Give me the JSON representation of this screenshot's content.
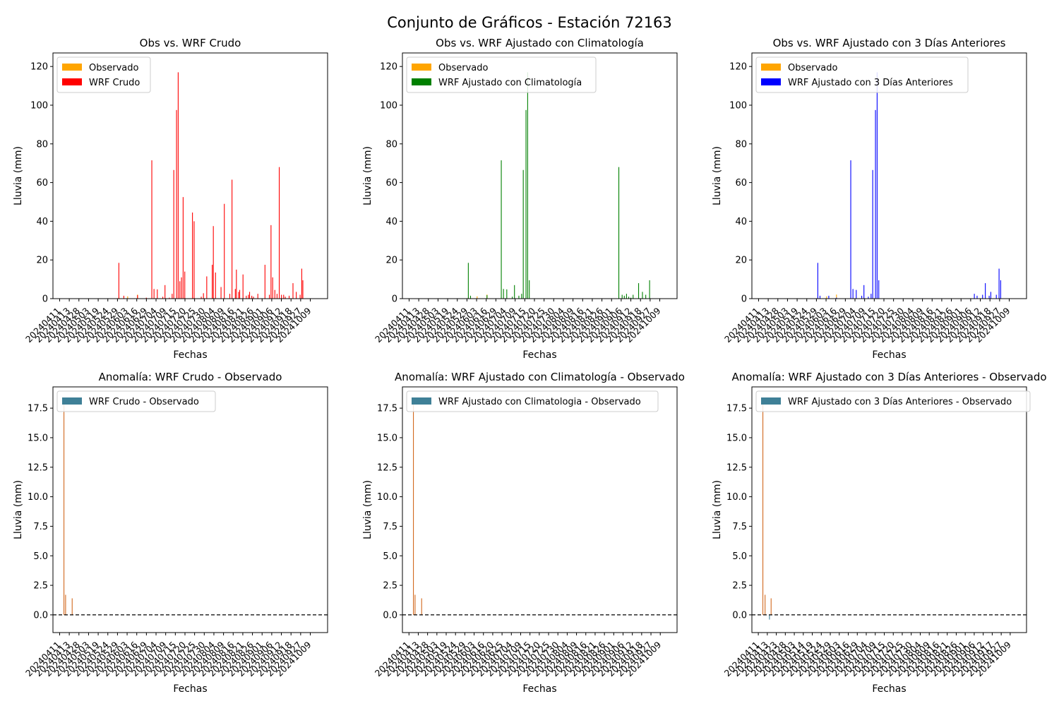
{
  "figure_title": "Conjunto de Gráficos - Estación 72163",
  "colors": {
    "observado": "#ffa500",
    "wrf_crudo": "#ff0000",
    "wrf_clim": "#008000",
    "wrf_3d": "#0000ff",
    "anom_legend": "#3f8097",
    "anom_pos": "#d2691e",
    "anom_neg": "#3f8097",
    "zero_line": "#000000"
  },
  "chart_data": [
    {
      "type": "bar",
      "title": "Obs vs. WRF Crudo",
      "xlabel": "Fechas",
      "ylabel": "Lluvia (mm)",
      "ylim": [
        0,
        127
      ],
      "yticks": [
        "0",
        "20",
        "40",
        "60",
        "80",
        "100",
        "120"
      ],
      "xticks": [
        "20240411",
        "20240413",
        "20240428",
        "20240503",
        "20240519",
        "20240524",
        "20240529",
        "20240603",
        "20240616",
        "20240629",
        "20240704",
        "20240709",
        "20240715",
        "20240720",
        "20240725",
        "20240730",
        "20240804",
        "20240809",
        "20240816",
        "20240821",
        "20240826",
        "20240901",
        "20240906",
        "20240912",
        "20240918",
        "20240927",
        "20241009"
      ],
      "legend": [
        "Observado",
        "WRF Crudo"
      ],
      "legend_position": "upper left",
      "series": [
        {
          "name": "Observado",
          "color_key": "observado",
          "values": [
            [
              12.0,
              0.5
            ],
            [
              13.6,
              1.2
            ],
            [
              15.4,
              2.1
            ]
          ]
        },
        {
          "name": "WRF Crudo",
          "color_key": "wrf_crudo",
          "values": [
            [
              12.0,
              18.5
            ],
            [
              12.9,
              1.5
            ],
            [
              15.4,
              1.8
            ],
            [
              17.0,
              0.5
            ],
            [
              18.0,
              71.5
            ],
            [
              18.4,
              5.0
            ],
            [
              19.0,
              4.8
            ],
            [
              20.0,
              1.0
            ],
            [
              20.4,
              7.0
            ],
            [
              21.2,
              0.5
            ],
            [
              21.7,
              2.5
            ],
            [
              22.0,
              66.5
            ],
            [
              22.5,
              97.5
            ],
            [
              22.8,
              117.0
            ],
            [
              23.1,
              9.0
            ],
            [
              23.4,
              11.0
            ],
            [
              23.7,
              52.5
            ],
            [
              24.0,
              14.0
            ],
            [
              25.4,
              44.5
            ],
            [
              25.7,
              40.0
            ],
            [
              27.0,
              1.0
            ],
            [
              27.4,
              2.8
            ],
            [
              28.0,
              11.5
            ],
            [
              29.0,
              17.5
            ],
            [
              29.2,
              37.5
            ],
            [
              29.6,
              13.5
            ],
            [
              30.6,
              6.0
            ],
            [
              31.2,
              49.0
            ],
            [
              32.2,
              2.5
            ],
            [
              32.6,
              61.5
            ],
            [
              33.2,
              5.0
            ],
            [
              33.4,
              15.0
            ],
            [
              33.8,
              3.5
            ],
            [
              34.0,
              4.5
            ],
            [
              34.6,
              12.5
            ],
            [
              35.2,
              1.5
            ],
            [
              35.6,
              2.0
            ],
            [
              35.8,
              3.5
            ],
            [
              36.2,
              1.5
            ],
            [
              36.5,
              1.0
            ],
            [
              37.3,
              2.5
            ],
            [
              38.6,
              17.5
            ],
            [
              39.4,
              2.0
            ],
            [
              39.7,
              38.0
            ],
            [
              40.0,
              11.0
            ],
            [
              40.4,
              4.5
            ],
            [
              40.8,
              2.5
            ],
            [
              41.2,
              68.0
            ],
            [
              41.6,
              2.0
            ],
            [
              42.0,
              2.0
            ],
            [
              42.3,
              1.0
            ],
            [
              43.0,
              1.5
            ],
            [
              43.7,
              8.0
            ],
            [
              44.3,
              3.5
            ],
            [
              45.0,
              2.0
            ],
            [
              45.3,
              15.5
            ],
            [
              45.5,
              9.5
            ]
          ]
        }
      ]
    },
    {
      "type": "bar",
      "title": "Obs vs. WRF Ajustado con Climatología",
      "xlabel": "Fechas",
      "ylabel": "Lluvia (mm)",
      "ylim": [
        0,
        127
      ],
      "yticks": [
        "0",
        "20",
        "40",
        "60",
        "80",
        "100",
        "120"
      ],
      "xticks": [
        "20240411",
        "20240413",
        "20240428",
        "20240503",
        "20240519",
        "20240524",
        "20240529",
        "20240603",
        "20240616",
        "20240629",
        "20240704",
        "20240709",
        "20240715",
        "20240720",
        "20240725",
        "20240730",
        "20240804",
        "20240809",
        "20240816",
        "20240821",
        "20240826",
        "20240901",
        "20240906",
        "20240912",
        "20240918",
        "20240927",
        "20241009"
      ],
      "legend": [
        "Observado",
        "WRF Ajustado con Climatología"
      ],
      "legend_position": "upper left",
      "series": [
        {
          "name": "Observado",
          "color_key": "observado",
          "values": [
            [
              12.0,
              0.5
            ],
            [
              13.6,
              1.2
            ],
            [
              15.4,
              2.1
            ]
          ]
        },
        {
          "name": "WRF Ajustado con Climatología",
          "color_key": "wrf_clim",
          "values": [
            [
              12.0,
              18.5
            ],
            [
              12.4,
              1.5
            ],
            [
              15.4,
              1.8
            ],
            [
              18.0,
              71.5
            ],
            [
              18.4,
              5.0
            ],
            [
              19.0,
              4.8
            ],
            [
              20.0,
              1.0
            ],
            [
              20.4,
              7.0
            ],
            [
              21.2,
              1.5
            ],
            [
              21.7,
              2.5
            ],
            [
              22.0,
              66.5
            ],
            [
              22.5,
              97.5
            ],
            [
              22.8,
              117.0
            ],
            [
              23.1,
              9.5
            ],
            [
              39.4,
              68.0
            ],
            [
              40.0,
              2.0
            ],
            [
              40.4,
              1.5
            ],
            [
              40.8,
              2.5
            ],
            [
              41.2,
              1.0
            ],
            [
              41.6,
              0.5
            ],
            [
              42.0,
              2.0
            ],
            [
              43.0,
              8.0
            ],
            [
              43.7,
              3.5
            ],
            [
              44.3,
              2.0
            ],
            [
              45.0,
              9.5
            ]
          ]
        }
      ]
    },
    {
      "type": "bar",
      "title": "Obs vs. WRF Ajustado con 3 Días Anteriores",
      "xlabel": "Fechas",
      "ylabel": "Lluvia (mm)",
      "ylim": [
        0,
        127
      ],
      "yticks": [
        "0",
        "20",
        "40",
        "60",
        "80",
        "100",
        "120"
      ],
      "xticks": [
        "20240411",
        "20240413",
        "20240428",
        "20240503",
        "20240519",
        "20240524",
        "20240529",
        "20240603",
        "20240616",
        "20240629",
        "20240704",
        "20240709",
        "20240715",
        "20240720",
        "20240725",
        "20240730",
        "20240804",
        "20240809",
        "20240816",
        "20240821",
        "20240826",
        "20240901",
        "20240906",
        "20240912",
        "20240918",
        "20240927",
        "20241009"
      ],
      "legend": [
        "Observado",
        "WRF Ajustado con 3 Días Anteriores"
      ],
      "legend_position": "upper left",
      "series": [
        {
          "name": "Observado",
          "color_key": "observado",
          "values": [
            [
              12.0,
              0.5
            ],
            [
              13.6,
              1.2
            ],
            [
              15.4,
              2.1
            ]
          ]
        },
        {
          "name": "WRF Ajustado con 3 Días Anteriores",
          "color_key": "wrf_3d",
          "values": [
            [
              12.0,
              18.5
            ],
            [
              12.4,
              1.5
            ],
            [
              14.0,
              1.5
            ],
            [
              15.4,
              0.5
            ],
            [
              18.0,
              71.5
            ],
            [
              18.4,
              5.0
            ],
            [
              19.0,
              4.5
            ],
            [
              20.0,
              1.5
            ],
            [
              20.4,
              7.0
            ],
            [
              21.2,
              1.0
            ],
            [
              21.7,
              2.5
            ],
            [
              22.0,
              66.5
            ],
            [
              22.5,
              97.5
            ],
            [
              22.8,
              117.0
            ],
            [
              23.1,
              9.5
            ],
            [
              40.5,
              2.5
            ],
            [
              41.0,
              1.5
            ],
            [
              42.0,
              2.0
            ],
            [
              42.5,
              8.0
            ],
            [
              43.2,
              1.5
            ],
            [
              43.5,
              3.5
            ],
            [
              44.5,
              2.0
            ],
            [
              45.0,
              15.5
            ],
            [
              45.3,
              9.5
            ]
          ]
        }
      ]
    },
    {
      "type": "bar",
      "title": "Anomalía: WRF Crudo - Observado",
      "xlabel": "Fechas",
      "ylabel": "Lluvia (mm)",
      "ylim": [
        -1.5,
        19.3
      ],
      "yticks": [
        "0.0",
        "2.5",
        "5.0",
        "7.5",
        "10.0",
        "12.5",
        "15.0",
        "17.5"
      ],
      "xticks": [
        "20240411",
        "20240413",
        "20240428",
        "20240503",
        "20240519",
        "20240524",
        "20240529",
        "20240603",
        "20240616",
        "20240629",
        "20240704",
        "20240709",
        "20240715",
        "20240720",
        "20240725",
        "20240730",
        "20240804",
        "20240809",
        "20240816",
        "20240821",
        "20240826",
        "20240901",
        "20240906",
        "20240912",
        "20240918",
        "20240927",
        "20241009"
      ],
      "legend": [
        "WRF Crudo - Observado"
      ],
      "legend_position": "upper left",
      "zero_line": true,
      "series": [
        {
          "name": "WRF Crudo - Observado",
          "values": [
            [
              2.0,
              18.0
            ],
            [
              2.3,
              1.7
            ],
            [
              3.5,
              1.4
            ]
          ]
        }
      ]
    },
    {
      "type": "bar",
      "title": "Anomalía: WRF Ajustado con Climatología - Observado",
      "xlabel": "Fechas",
      "ylabel": "Lluvia (mm)",
      "ylim": [
        -1.5,
        19.3
      ],
      "yticks": [
        "0.0",
        "2.5",
        "5.0",
        "7.5",
        "10.0",
        "12.5",
        "15.0",
        "17.5"
      ],
      "xticks": [
        "20240411",
        "20240413",
        "20240428",
        "20240503",
        "20240519",
        "20240524",
        "20240529",
        "20240603",
        "20240616",
        "20240620",
        "20240625",
        "20240704",
        "20240709",
        "20240715",
        "20240720",
        "20240725",
        "20240730",
        "20240804",
        "20240809",
        "20240816",
        "20240821",
        "20240826",
        "20240901",
        "20240906",
        "20240912",
        "20240918",
        "20240927",
        "20241009"
      ],
      "legend": [
        "WRF Ajustado con Climatologia - Observado"
      ],
      "legend_position": "upper left",
      "zero_line": true,
      "series": [
        {
          "name": "WRF Ajustado con Climatologia - Observado",
          "values": [
            [
              2.0,
              18.0
            ],
            [
              2.3,
              1.7
            ],
            [
              3.5,
              1.4
            ]
          ]
        }
      ]
    },
    {
      "type": "bar",
      "title": "Anomalía: WRF Ajustado con 3 Días Anteriores - Observado",
      "xlabel": "Fechas",
      "ylabel": "Lluvia (mm)",
      "ylim": [
        -1.5,
        19.3
      ],
      "yticks": [
        "0.0",
        "2.5",
        "5.0",
        "7.5",
        "10.0",
        "12.5",
        "15.0",
        "17.5"
      ],
      "xticks": [
        "20240411",
        "20240413",
        "20240423",
        "20240428",
        "20240503",
        "20240514",
        "20240519",
        "20240524",
        "20240529",
        "20240603",
        "20240616",
        "20240629",
        "20240704",
        "20240709",
        "20240715",
        "20240720",
        "20240725",
        "20240730",
        "20240804",
        "20240809",
        "20240816",
        "20240821",
        "20240826",
        "20240901",
        "20240906",
        "20240912",
        "20240917",
        "20240927",
        "20241009"
      ],
      "legend": [
        "WRF Ajustado con 3 Días Anteriores - Observado"
      ],
      "legend_position": "upper left",
      "zero_line": true,
      "series": [
        {
          "name": "WRF Ajustado con 3 Días Anteriores - Observado",
          "values": [
            [
              2.0,
              18.3
            ],
            [
              2.4,
              1.7
            ],
            [
              3.2,
              -0.4
            ],
            [
              3.5,
              1.4
            ]
          ]
        }
      ]
    }
  ]
}
